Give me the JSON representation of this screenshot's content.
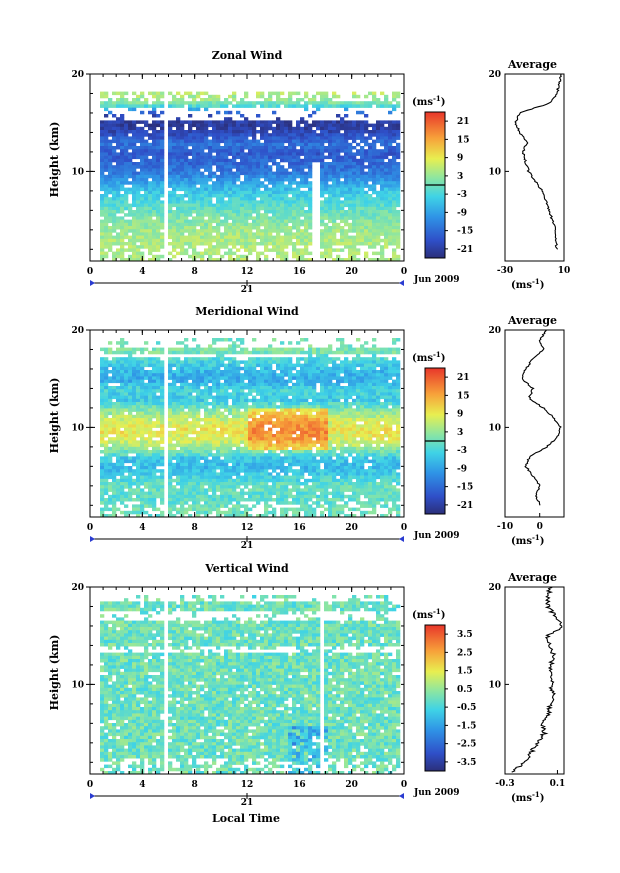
{
  "figure": {
    "date_label": "Jun 2009",
    "day_label": "21",
    "xlabel": "Local Time",
    "ylabel": "Height (km)",
    "unit_base": "(ms",
    "unit_exp": "-1",
    "unit_close": ")"
  },
  "chart_data": [
    {
      "id": "zonal",
      "type": "heatmap",
      "title": "Zonal Wind",
      "x_ticks": [
        "0",
        "4",
        "8",
        "12",
        "16",
        "20",
        "0"
      ],
      "y_ticks": [
        "20",
        "10"
      ],
      "colorbar_ticks": [
        "21",
        "15",
        "9",
        "3",
        "-3",
        "-9",
        "-15",
        "-21"
      ],
      "colorbar_range": [
        -24,
        24
      ],
      "profile": {
        "title": "Average",
        "x_ticks": [
          "-30",
          "10"
        ],
        "xlim": [
          -30,
          10
        ],
        "y_ticks": [
          "20",
          "10"
        ],
        "height_km": [
          2,
          4,
          6,
          8,
          10,
          12,
          13,
          14,
          15,
          16,
          16.5,
          17,
          17.5,
          18,
          19,
          20
        ],
        "values": [
          5,
          4,
          0,
          -5,
          -14,
          -18,
          -15,
          -20,
          -23,
          -20,
          -10,
          0,
          3,
          5,
          7,
          8
        ]
      }
    },
    {
      "id": "meridional",
      "type": "heatmap",
      "title": "Meridional Wind",
      "x_ticks": [
        "0",
        "4",
        "8",
        "12",
        "16",
        "20",
        "0"
      ],
      "y_ticks": [
        "20",
        "10"
      ],
      "colorbar_ticks": [
        "21",
        "15",
        "9",
        "3",
        "-3",
        "-9",
        "-15",
        "-21"
      ],
      "colorbar_range": [
        -24,
        24
      ],
      "profile": {
        "title": "Average",
        "x_ticks": [
          "-10",
          "0"
        ],
        "xlim": [
          -10,
          7
        ],
        "y_ticks": [
          "20",
          "10"
        ],
        "height_km": [
          2,
          3,
          4,
          5,
          6,
          7,
          8,
          9,
          10,
          11,
          12,
          13,
          14,
          15,
          16,
          17,
          18,
          19,
          20
        ],
        "values": [
          0,
          -1,
          0,
          -2,
          -4,
          -3,
          2,
          5,
          6,
          4,
          1,
          -3,
          -2,
          -5,
          -4,
          -2,
          1,
          0,
          2
        ]
      }
    },
    {
      "id": "vertical",
      "type": "heatmap",
      "title": "Vertical Wind",
      "x_ticks": [
        "0",
        "4",
        "8",
        "12",
        "16",
        "20",
        "0"
      ],
      "y_ticks": [
        "20",
        "10"
      ],
      "colorbar_ticks": [
        "3.5",
        "2.5",
        "1.5",
        "0.5",
        "-0.5",
        "-1.5",
        "-2.5",
        "-3.5"
      ],
      "colorbar_range": [
        -4,
        4
      ],
      "profile": {
        "title": "Average",
        "x_ticks": [
          "-0.3",
          "0.1"
        ],
        "xlim": [
          -0.3,
          0.15
        ],
        "y_ticks": [
          "20",
          "10"
        ],
        "height_km": [
          1,
          2,
          3,
          4,
          5,
          6,
          7,
          8,
          9,
          10,
          11,
          12,
          13,
          14,
          15,
          15.5,
          16,
          17,
          18,
          19,
          20
        ],
        "values": [
          -0.25,
          -0.15,
          -0.1,
          -0.05,
          0.0,
          -0.02,
          0.03,
          0.05,
          0.07,
          0.05,
          0.06,
          0.05,
          0.07,
          0.05,
          0.02,
          0.1,
          0.14,
          0.08,
          0.03,
          0.02,
          0.05
        ]
      }
    }
  ]
}
